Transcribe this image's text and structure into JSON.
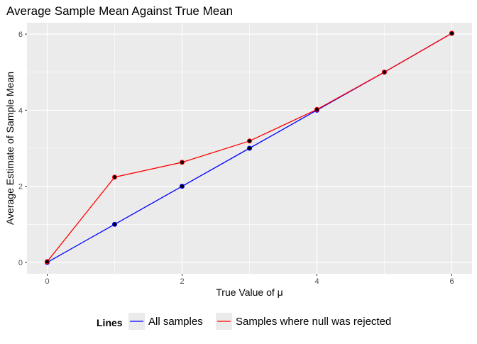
{
  "chart_data": {
    "type": "line",
    "title": "Average Sample Mean Against True Mean",
    "xlabel": "True Value of μ",
    "ylabel": "Average Estimate of Sample Mean",
    "xlim": [
      -0.3,
      6.3
    ],
    "ylim": [
      -0.3,
      6.3
    ],
    "x_ticks": [
      0,
      2,
      4,
      6
    ],
    "y_ticks": [
      0,
      2,
      4,
      6
    ],
    "grid": true,
    "legend_position": "bottom",
    "legend_title": "Lines",
    "x": [
      0,
      1,
      2,
      3,
      4,
      5,
      6
    ],
    "series": [
      {
        "name": "All samples",
        "color": "#0000ff",
        "values": [
          0.0,
          1.0,
          2.0,
          3.0,
          4.0,
          5.0,
          6.02
        ]
      },
      {
        "name": "Samples where null was rejected",
        "color": "#ff0000",
        "values": [
          0.02,
          2.24,
          2.63,
          3.19,
          4.02,
          5.0,
          6.02
        ]
      }
    ]
  }
}
